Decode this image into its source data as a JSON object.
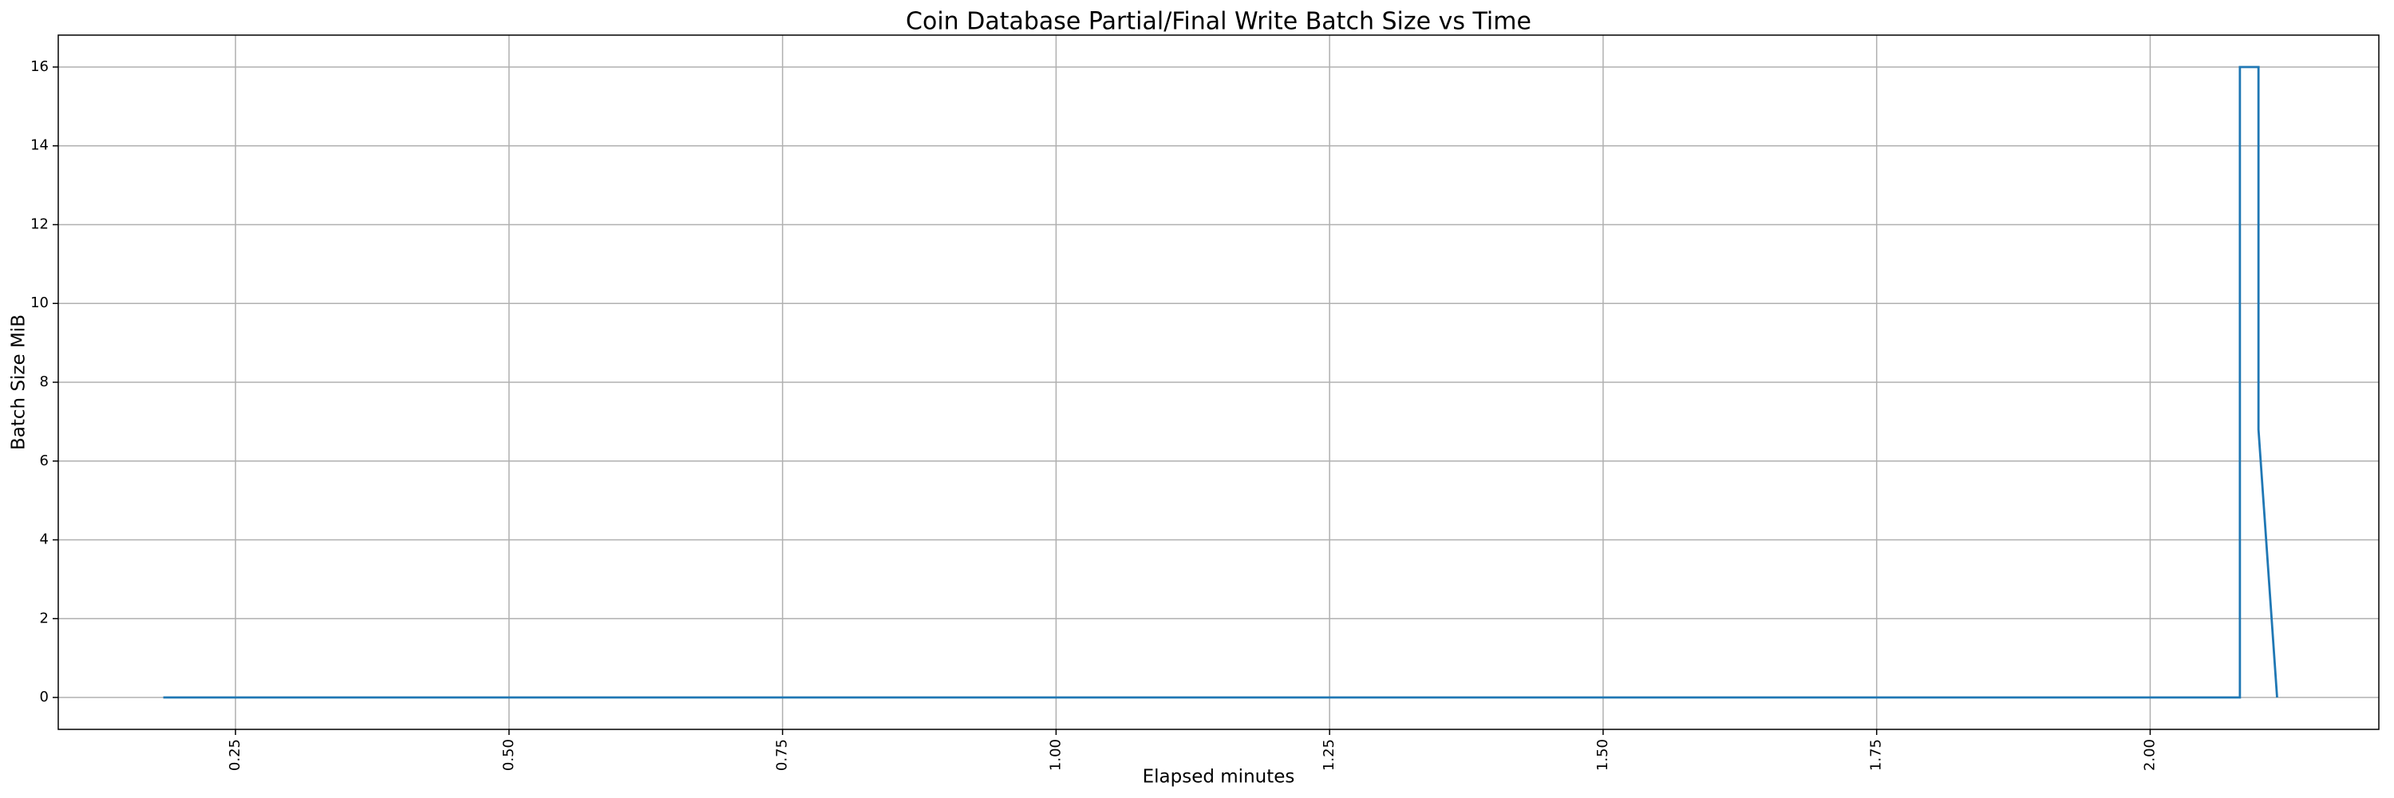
{
  "chart_data": {
    "type": "line",
    "title": "Coin Database Partial/Final Write Batch Size vs Time",
    "x_label": "Elapsed minutes",
    "y_label": "Batch Size MiB",
    "x": [
      0.184,
      2.082,
      2.082,
      2.099,
      2.099,
      2.116
    ],
    "series": [
      {
        "name": "Batch Size MiB",
        "color": "#1f77b4",
        "values": [
          0,
          0,
          16,
          16,
          6.8,
          0
        ]
      }
    ],
    "xlim": [
      0.088,
      2.209
    ],
    "ylim": [
      -0.81,
      16.81
    ],
    "xticks": [
      0.25,
      {
        "value": 0.5,
        "label": "0.50"
      },
      0.75,
      {
        "value": 1,
        "label": "1.00"
      },
      1.25,
      {
        "value": 1.5,
        "label": "1.50"
      },
      1.75,
      {
        "value": 2,
        "label": "2.00"
      }
    ],
    "yticks": [
      0,
      2,
      4,
      6,
      8,
      10,
      12,
      14,
      16
    ],
    "grid": true
  }
}
